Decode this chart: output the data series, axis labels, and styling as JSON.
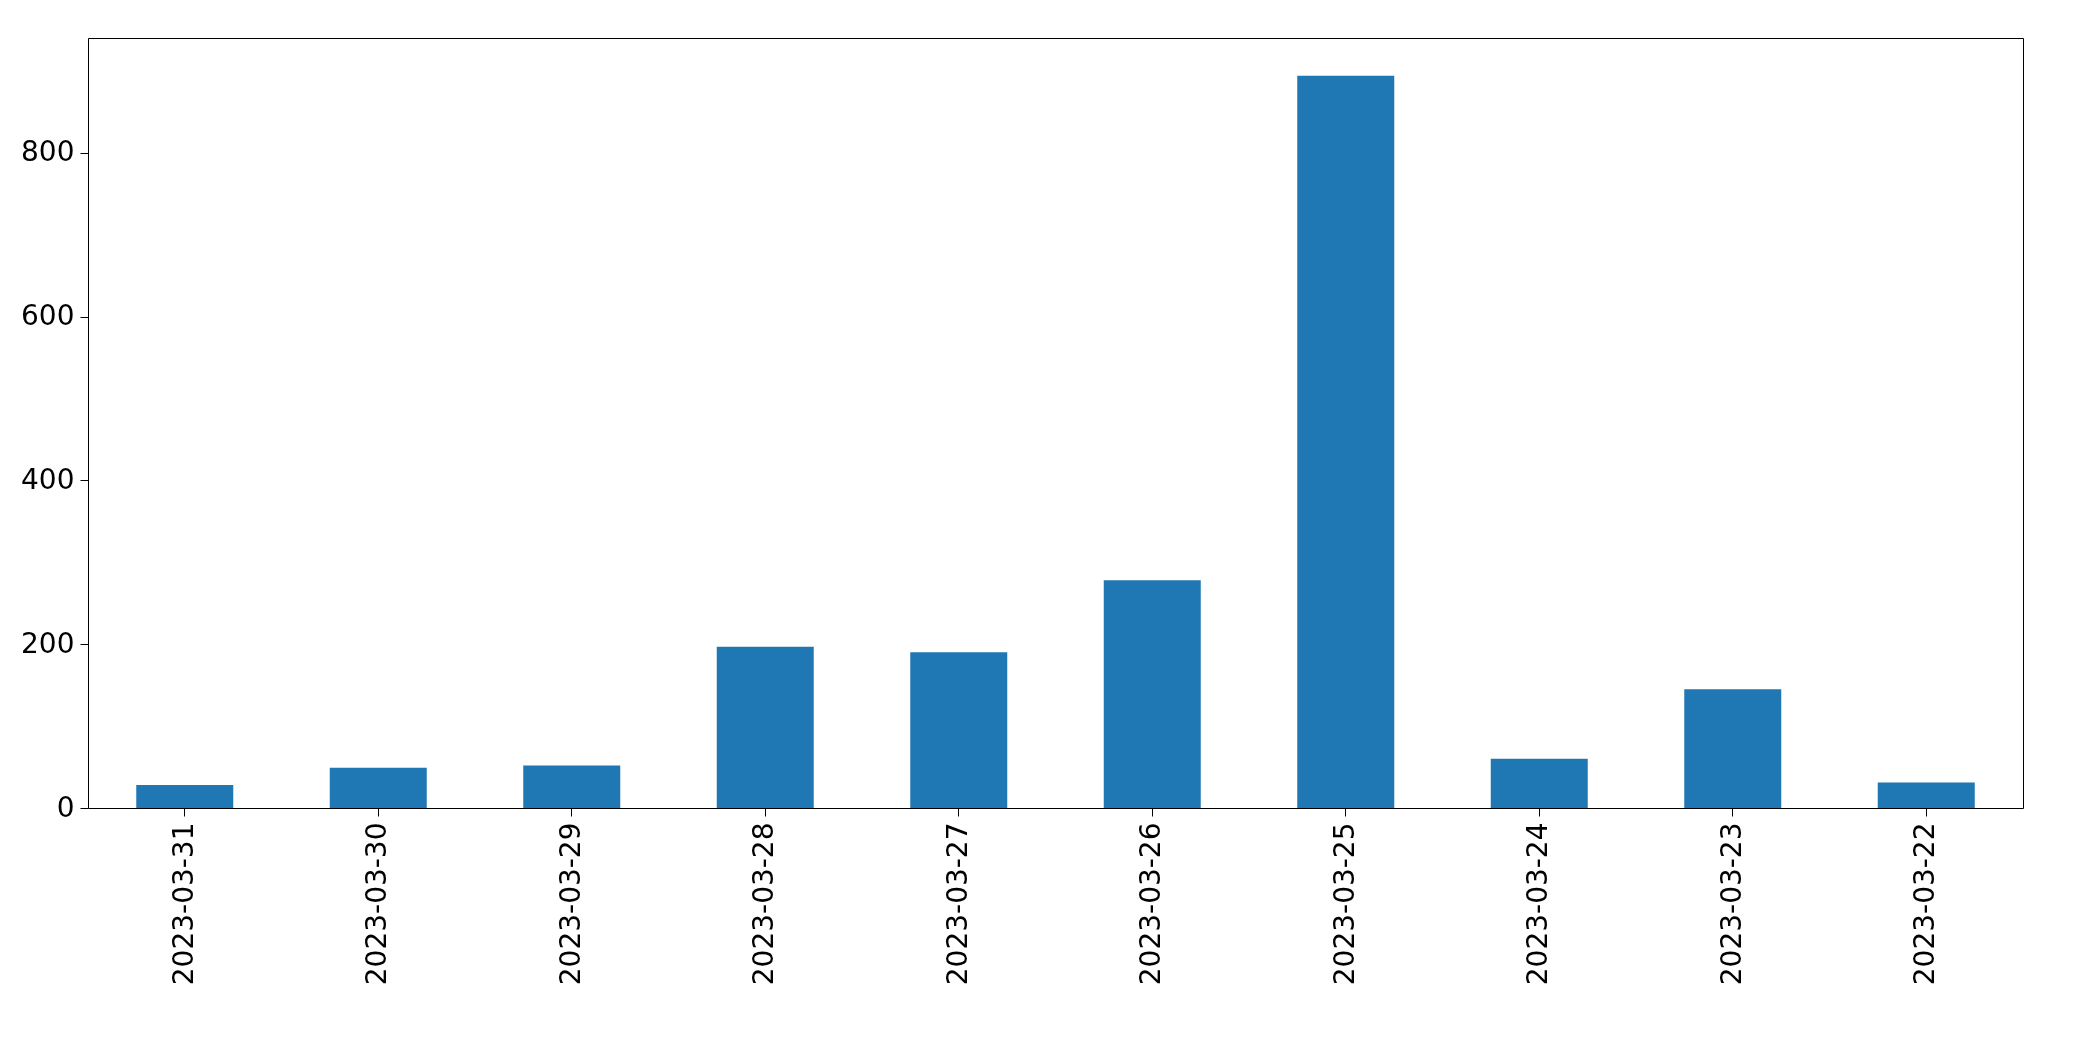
{
  "chart_data": {
    "type": "bar",
    "categories": [
      "2023-03-31",
      "2023-03-30",
      "2023-03-29",
      "2023-03-28",
      "2023-03-27",
      "2023-03-26",
      "2023-03-25",
      "2023-03-24",
      "2023-03-23",
      "2023-03-22"
    ],
    "values": [
      28,
      49,
      52,
      197,
      190,
      278,
      894,
      60,
      145,
      31
    ],
    "color": "#1f77b4",
    "ylim": [
      0,
      940
    ],
    "yticks": [
      0,
      200,
      400,
      600,
      800
    ],
    "grid": false
  }
}
